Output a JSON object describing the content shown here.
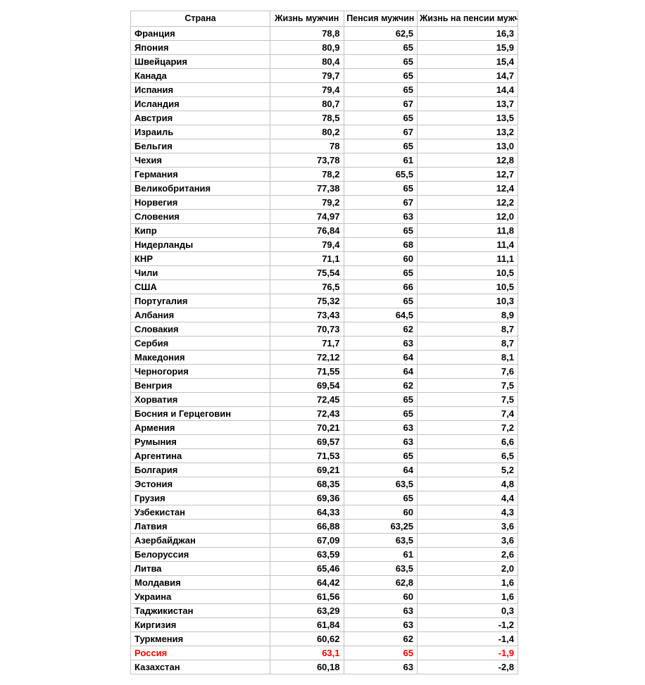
{
  "table": {
    "columns": [
      "Страна",
      "Жизнь мужчин",
      "Пенсия мужчин",
      "Жизнь на пенсии мужчин"
    ],
    "column_widths": [
      "36%",
      "19%",
      "19%",
      "26%"
    ],
    "alignments": [
      "left",
      "right",
      "right",
      "right"
    ],
    "header_fontsize": 12.5,
    "cell_fontsize": 13,
    "font_weight": "bold",
    "border_color": "#c2c2c2",
    "text_color": "#000000",
    "highlight_color": "#ff0000",
    "background_color": "#ffffff",
    "rows": [
      {
        "country": "Франция",
        "life": "78,8",
        "pension": "62,5",
        "retire": "16,3",
        "highlight": false
      },
      {
        "country": "Япония",
        "life": "80,9",
        "pension": "65",
        "retire": "15,9",
        "highlight": false
      },
      {
        "country": "Швейцария",
        "life": "80,4",
        "pension": "65",
        "retire": "15,4",
        "highlight": false
      },
      {
        "country": "Канада",
        "life": "79,7",
        "pension": "65",
        "retire": "14,7",
        "highlight": false
      },
      {
        "country": "Испания",
        "life": "79,4",
        "pension": "65",
        "retire": "14,4",
        "highlight": false
      },
      {
        "country": "Исландия",
        "life": "80,7",
        "pension": "67",
        "retire": "13,7",
        "highlight": false
      },
      {
        "country": "Австрия",
        "life": "78,5",
        "pension": "65",
        "retire": "13,5",
        "highlight": false
      },
      {
        "country": "Израиль",
        "life": "80,2",
        "pension": "67",
        "retire": "13,2",
        "highlight": false
      },
      {
        "country": "Бельгия",
        "life": "78",
        "pension": "65",
        "retire": "13,0",
        "highlight": false
      },
      {
        "country": "Чехия",
        "life": "73,78",
        "pension": "61",
        "retire": "12,8",
        "highlight": false
      },
      {
        "country": "Германия",
        "life": "78,2",
        "pension": "65,5",
        "retire": "12,7",
        "highlight": false
      },
      {
        "country": "Великобритания",
        "life": "77,38",
        "pension": "65",
        "retire": "12,4",
        "highlight": false
      },
      {
        "country": "Норвегия",
        "life": "79,2",
        "pension": "67",
        "retire": "12,2",
        "highlight": false
      },
      {
        "country": "Словения",
        "life": "74,97",
        "pension": "63",
        "retire": "12,0",
        "highlight": false
      },
      {
        "country": "Кипр",
        "life": "76,84",
        "pension": "65",
        "retire": "11,8",
        "highlight": false
      },
      {
        "country": "Нидерланды",
        "life": "79,4",
        "pension": "68",
        "retire": "11,4",
        "highlight": false
      },
      {
        "country": "КНР",
        "life": "71,1",
        "pension": "60",
        "retire": "11,1",
        "highlight": false
      },
      {
        "country": "Чили",
        "life": "75,54",
        "pension": "65",
        "retire": "10,5",
        "highlight": false
      },
      {
        "country": "США",
        "life": "76,5",
        "pension": "66",
        "retire": "10,5",
        "highlight": false
      },
      {
        "country": "Португалия",
        "life": "75,32",
        "pension": "65",
        "retire": "10,3",
        "highlight": false
      },
      {
        "country": "Албания",
        "life": "73,43",
        "pension": "64,5",
        "retire": "8,9",
        "highlight": false
      },
      {
        "country": "Словакия",
        "life": "70,73",
        "pension": "62",
        "retire": "8,7",
        "highlight": false
      },
      {
        "country": "Сербия",
        "life": "71,7",
        "pension": "63",
        "retire": "8,7",
        "highlight": false
      },
      {
        "country": "Македония",
        "life": "72,12",
        "pension": "64",
        "retire": "8,1",
        "highlight": false
      },
      {
        "country": "Черногория",
        "life": "71,55",
        "pension": "64",
        "retire": "7,6",
        "highlight": false
      },
      {
        "country": "Венгрия",
        "life": "69,54",
        "pension": "62",
        "retire": "7,5",
        "highlight": false
      },
      {
        "country": "Хорватия",
        "life": "72,45",
        "pension": "65",
        "retire": "7,5",
        "highlight": false
      },
      {
        "country": "Босния и Герцеговин",
        "life": "72,43",
        "pension": "65",
        "retire": "7,4",
        "highlight": false
      },
      {
        "country": "Армения",
        "life": "70,21",
        "pension": "63",
        "retire": "7,2",
        "highlight": false
      },
      {
        "country": "Румыния",
        "life": "69,57",
        "pension": "63",
        "retire": "6,6",
        "highlight": false
      },
      {
        "country": "Аргентина",
        "life": "71,53",
        "pension": "65",
        "retire": "6,5",
        "highlight": false
      },
      {
        "country": "Болгария",
        "life": "69,21",
        "pension": "64",
        "retire": "5,2",
        "highlight": false
      },
      {
        "country": "Эстония",
        "life": "68,35",
        "pension": "63,5",
        "retire": "4,8",
        "highlight": false
      },
      {
        "country": "Грузия",
        "life": "69,36",
        "pension": "65",
        "retire": "4,4",
        "highlight": false
      },
      {
        "country": "Узбекистан",
        "life": "64,33",
        "pension": "60",
        "retire": "4,3",
        "highlight": false
      },
      {
        "country": "Латвия",
        "life": "66,88",
        "pension": "63,25",
        "retire": "3,6",
        "highlight": false
      },
      {
        "country": "Азербайджан",
        "life": "67,09",
        "pension": "63,5",
        "retire": "3,6",
        "highlight": false
      },
      {
        "country": "Белоруссия",
        "life": "63,59",
        "pension": "61",
        "retire": "2,6",
        "highlight": false
      },
      {
        "country": "Литва",
        "life": "65,46",
        "pension": "63,5",
        "retire": "2,0",
        "highlight": false
      },
      {
        "country": "Молдавия",
        "life": "64,42",
        "pension": "62,8",
        "retire": "1,6",
        "highlight": false
      },
      {
        "country": "Украина",
        "life": "61,56",
        "pension": "60",
        "retire": "1,6",
        "highlight": false
      },
      {
        "country": "Таджикистан",
        "life": "63,29",
        "pension": "63",
        "retire": "0,3",
        "highlight": false
      },
      {
        "country": "Киргизия",
        "life": "61,84",
        "pension": "63",
        "retire": "-1,2",
        "highlight": false
      },
      {
        "country": "Туркмения",
        "life": "60,62",
        "pension": "62",
        "retire": "-1,4",
        "highlight": false
      },
      {
        "country": "Россия",
        "life": "63,1",
        "pension": "65",
        "retire": "-1,9",
        "highlight": true
      },
      {
        "country": "Казахстан",
        "life": "60,18",
        "pension": "63",
        "retire": "-2,8",
        "highlight": false
      }
    ]
  }
}
